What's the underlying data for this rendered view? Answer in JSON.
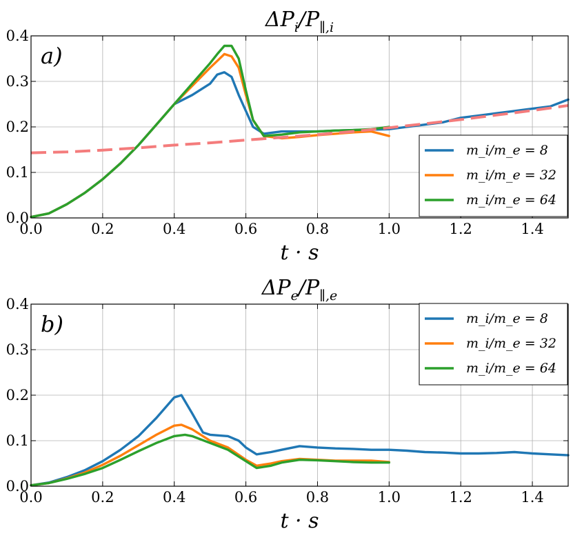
{
  "chart_data": [
    {
      "type": "line",
      "panel_label": "a)",
      "title": "ΔP_i/P_∥,i",
      "title_main": "ΔP",
      "title_sub1": "i",
      "title_mid": "/P",
      "title_sub2": "∥,i",
      "xlabel": "t · s",
      "xlim": [
        0,
        1.5
      ],
      "ylim": [
        0,
        0.4
      ],
      "xticks": [
        "0.0",
        "0.2",
        "0.4",
        "0.6",
        "0.8",
        "1.0",
        "1.2",
        "1.4"
      ],
      "yticks": [
        "0.0",
        "0.1",
        "0.2",
        "0.3",
        "0.4"
      ],
      "grid": true,
      "legend_position": "bottom-right",
      "series": [
        {
          "name": "m_i/m_e = 8",
          "color": "#1f77b4",
          "x": [
            0,
            0.05,
            0.1,
            0.15,
            0.2,
            0.25,
            0.3,
            0.35,
            0.4,
            0.45,
            0.5,
            0.52,
            0.54,
            0.56,
            0.58,
            0.6,
            0.62,
            0.65,
            0.7,
            0.75,
            0.8,
            0.85,
            0.9,
            0.95,
            1.0,
            1.05,
            1.1,
            1.15,
            1.2,
            1.25,
            1.3,
            1.35,
            1.4,
            1.45,
            1.5
          ],
          "y": [
            0.002,
            0.01,
            0.03,
            0.055,
            0.085,
            0.12,
            0.16,
            0.205,
            0.25,
            0.27,
            0.295,
            0.315,
            0.32,
            0.31,
            0.27,
            0.235,
            0.2,
            0.185,
            0.19,
            0.19,
            0.19,
            0.192,
            0.193,
            0.194,
            0.195,
            0.2,
            0.205,
            0.21,
            0.22,
            0.225,
            0.23,
            0.235,
            0.24,
            0.245,
            0.26
          ]
        },
        {
          "name": "m_i/m_e = 32",
          "color": "#ff7f0e",
          "x": [
            0,
            0.05,
            0.1,
            0.15,
            0.2,
            0.25,
            0.3,
            0.35,
            0.4,
            0.45,
            0.5,
            0.52,
            0.54,
            0.56,
            0.58,
            0.6,
            0.62,
            0.65,
            0.7,
            0.75,
            0.8,
            0.85,
            0.9,
            0.95,
            1.0
          ],
          "y": [
            0.002,
            0.01,
            0.03,
            0.055,
            0.085,
            0.12,
            0.16,
            0.205,
            0.25,
            0.29,
            0.33,
            0.345,
            0.36,
            0.355,
            0.33,
            0.27,
            0.215,
            0.18,
            0.175,
            0.178,
            0.182,
            0.185,
            0.188,
            0.19,
            0.18
          ]
        },
        {
          "name": "m_i/m_e = 64",
          "color": "#2ca02c",
          "x": [
            0,
            0.05,
            0.1,
            0.15,
            0.2,
            0.25,
            0.3,
            0.35,
            0.4,
            0.45,
            0.5,
            0.52,
            0.54,
            0.56,
            0.58,
            0.6,
            0.62,
            0.65,
            0.7,
            0.75,
            0.8,
            0.85,
            0.9,
            0.95,
            1.0
          ],
          "y": [
            0.002,
            0.01,
            0.03,
            0.055,
            0.085,
            0.12,
            0.16,
            0.205,
            0.25,
            0.295,
            0.34,
            0.36,
            0.378,
            0.378,
            0.35,
            0.28,
            0.215,
            0.18,
            0.183,
            0.188,
            0.19,
            0.192,
            0.193,
            0.195,
            0.2
          ]
        },
        {
          "name": "",
          "color": "#f47c7c",
          "dashed": true,
          "x": [
            0,
            0.1,
            0.2,
            0.3,
            0.4,
            0.5,
            0.6,
            0.7,
            0.8,
            0.9,
            1.0,
            1.1,
            1.2,
            1.3,
            1.4,
            1.5
          ],
          "y": [
            0.143,
            0.145,
            0.149,
            0.154,
            0.16,
            0.165,
            0.171,
            0.177,
            0.183,
            0.19,
            0.198,
            0.207,
            0.216,
            0.226,
            0.236,
            0.247
          ]
        }
      ]
    },
    {
      "type": "line",
      "panel_label": "b)",
      "title": "ΔP_e/P_∥,e",
      "title_main": "ΔP",
      "title_sub1": "e",
      "title_mid": "/P",
      "title_sub2": "∥,e",
      "xlabel": "t · s",
      "xlim": [
        0,
        1.5
      ],
      "ylim": [
        0,
        0.4
      ],
      "xticks": [
        "0.0",
        "0.2",
        "0.4",
        "0.6",
        "0.8",
        "1.0",
        "1.2",
        "1.4"
      ],
      "yticks": [
        "0.0",
        "0.1",
        "0.2",
        "0.3",
        "0.4"
      ],
      "grid": true,
      "legend_position": "top-right",
      "series": [
        {
          "name": "m_i/m_e = 8",
          "color": "#1f77b4",
          "x": [
            0,
            0.05,
            0.1,
            0.15,
            0.2,
            0.25,
            0.3,
            0.35,
            0.4,
            0.42,
            0.45,
            0.48,
            0.5,
            0.55,
            0.58,
            0.6,
            0.63,
            0.67,
            0.7,
            0.75,
            0.8,
            0.85,
            0.9,
            0.95,
            1.0,
            1.05,
            1.1,
            1.15,
            1.2,
            1.25,
            1.3,
            1.35,
            1.4,
            1.45,
            1.5
          ],
          "y": [
            0.002,
            0.008,
            0.02,
            0.035,
            0.055,
            0.08,
            0.11,
            0.15,
            0.195,
            0.2,
            0.16,
            0.118,
            0.113,
            0.11,
            0.1,
            0.085,
            0.07,
            0.075,
            0.08,
            0.088,
            0.085,
            0.083,
            0.082,
            0.08,
            0.08,
            0.078,
            0.075,
            0.074,
            0.072,
            0.072,
            0.073,
            0.075,
            0.072,
            0.07,
            0.068
          ]
        },
        {
          "name": "m_i/m_e = 32",
          "color": "#ff7f0e",
          "x": [
            0,
            0.05,
            0.1,
            0.15,
            0.2,
            0.25,
            0.3,
            0.35,
            0.4,
            0.42,
            0.45,
            0.5,
            0.55,
            0.6,
            0.63,
            0.67,
            0.7,
            0.75,
            0.8,
            0.85,
            0.9,
            0.95,
            1.0
          ],
          "y": [
            0.002,
            0.007,
            0.017,
            0.03,
            0.047,
            0.067,
            0.09,
            0.113,
            0.133,
            0.135,
            0.125,
            0.1,
            0.085,
            0.058,
            0.045,
            0.05,
            0.055,
            0.06,
            0.058,
            0.056,
            0.056,
            0.056,
            0.053
          ]
        },
        {
          "name": "m_i/m_e = 64",
          "color": "#2ca02c",
          "x": [
            0,
            0.05,
            0.1,
            0.15,
            0.2,
            0.25,
            0.3,
            0.35,
            0.4,
            0.43,
            0.45,
            0.5,
            0.55,
            0.6,
            0.63,
            0.67,
            0.7,
            0.75,
            0.8,
            0.85,
            0.9,
            0.95,
            1.0
          ],
          "y": [
            0.002,
            0.007,
            0.016,
            0.027,
            0.04,
            0.058,
            0.077,
            0.095,
            0.11,
            0.113,
            0.11,
            0.095,
            0.08,
            0.055,
            0.04,
            0.045,
            0.052,
            0.058,
            0.057,
            0.055,
            0.053,
            0.052,
            0.052
          ]
        }
      ]
    }
  ]
}
